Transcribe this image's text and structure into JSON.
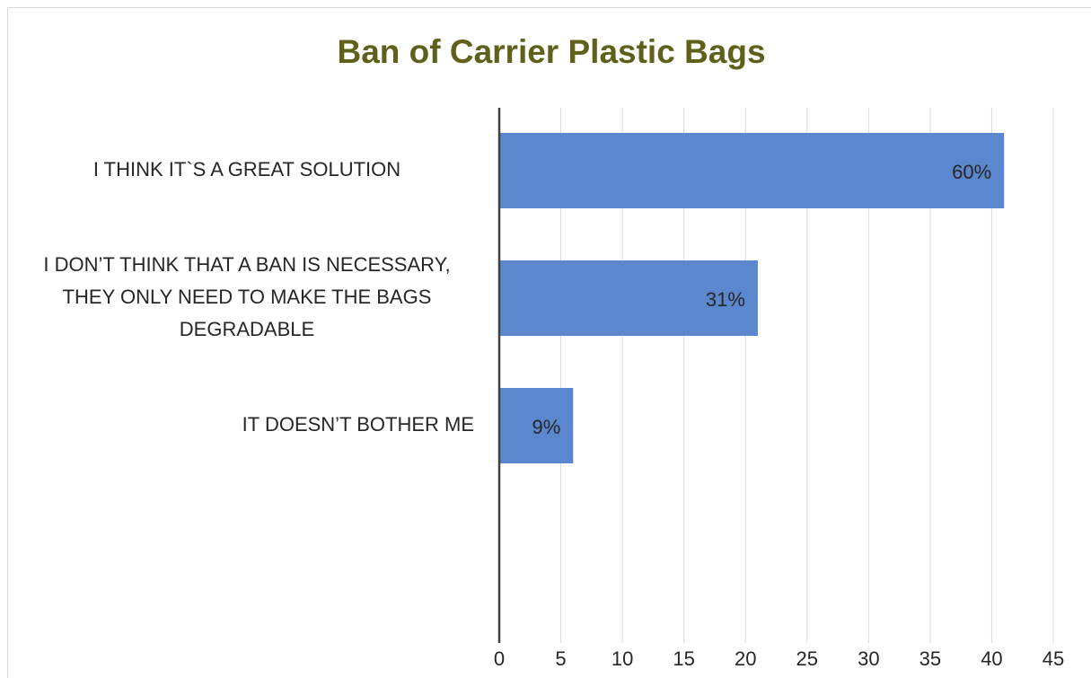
{
  "chart_data": {
    "type": "barh",
    "title": "Ban of Carrier Plastic Bags",
    "categories": [
      "I THINK IT`S A GREAT SOLUTION",
      "I DON’T THINK THAT A BAN IS NECESSARY, THEY ONLY NEED TO MAKE THE BAGS DEGRADABLE",
      "IT DOESN’T BOTHER ME"
    ],
    "values": [
      41,
      21,
      6
    ],
    "data_labels": [
      "60%",
      "31%",
      "9%"
    ],
    "color": "#5b87cf",
    "xlim": [
      0,
      45
    ],
    "xticks": [
      0,
      5,
      10,
      15,
      20,
      25,
      30,
      35,
      40,
      45
    ],
    "grid": true
  }
}
